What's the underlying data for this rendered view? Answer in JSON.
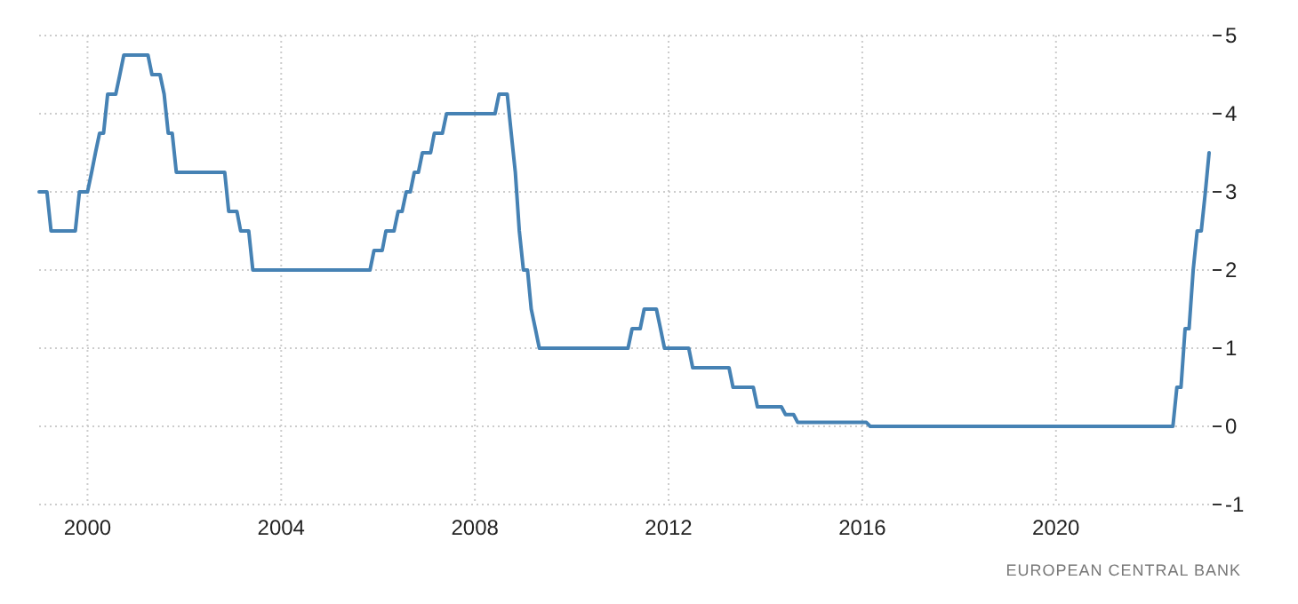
{
  "chart_data": {
    "type": "line",
    "annotations": [
      "EUROPEAN CENTRAL BANK"
    ],
    "x": [
      "1999-01",
      "1999-03",
      "1999-04",
      "1999-10",
      "1999-11",
      "2000-01",
      "2000-02",
      "2000-03",
      "2000-04",
      "2000-05",
      "2000-06",
      "2000-08",
      "2000-09",
      "2000-10",
      "2001-04",
      "2001-05",
      "2001-07",
      "2001-08",
      "2001-09",
      "2001-10",
      "2001-11",
      "2002-11",
      "2002-12",
      "2003-02",
      "2003-03",
      "2003-05",
      "2003-06",
      "2005-11",
      "2005-12",
      "2006-02",
      "2006-03",
      "2006-05",
      "2006-06",
      "2006-07",
      "2006-08",
      "2006-09",
      "2006-10",
      "2006-11",
      "2006-12",
      "2007-02",
      "2007-03",
      "2007-05",
      "2007-06",
      "2008-06",
      "2008-07",
      "2008-09",
      "2008-10",
      "2008-11",
      "2008-12",
      "2009-01",
      "2009-02",
      "2009-03",
      "2009-04",
      "2009-05",
      "2011-03",
      "2011-04",
      "2011-06",
      "2011-07",
      "2011-10",
      "2011-11",
      "2011-12",
      "2012-06",
      "2012-07",
      "2013-04",
      "2013-05",
      "2013-10",
      "2013-11",
      "2014-05",
      "2014-06",
      "2014-08",
      "2014-09",
      "2016-02",
      "2016-03",
      "2022-06",
      "2022-07",
      "2022-08",
      "2022-09",
      "2022-10",
      "2022-11",
      "2022-12",
      "2023-01",
      "2023-02",
      "2023-03"
    ],
    "series": [
      {
        "color": "#4682b4",
        "values": [
          3,
          3,
          2.5,
          2.5,
          3,
          3,
          3.25,
          3.5,
          3.75,
          3.75,
          4.25,
          4.25,
          4.5,
          4.75,
          4.75,
          4.5,
          4.5,
          4.25,
          3.75,
          3.75,
          3.25,
          3.25,
          2.75,
          2.75,
          2.5,
          2.5,
          2,
          2,
          2.25,
          2.25,
          2.5,
          2.5,
          2.75,
          2.75,
          3,
          3,
          3.25,
          3.25,
          3.5,
          3.5,
          3.75,
          3.75,
          4,
          4,
          4.25,
          4.25,
          3.75,
          3.25,
          2.5,
          2,
          2,
          1.5,
          1.25,
          1,
          1,
          1.25,
          1.25,
          1.5,
          1.5,
          1.25,
          1,
          1,
          0.75,
          0.75,
          0.5,
          0.5,
          0.25,
          0.25,
          0.15,
          0.15,
          0.05,
          0.05,
          0,
          0,
          0.5,
          0.5,
          1.25,
          1.25,
          2,
          2.5,
          2.5,
          3,
          3.5
        ]
      }
    ],
    "xlim": [
      "1999-01",
      "2023-03"
    ],
    "xticks": [
      {
        "value": "2000",
        "label": "2000"
      },
      {
        "value": "2004",
        "label": "2004"
      },
      {
        "value": "2008",
        "label": "2008"
      },
      {
        "value": "2012",
        "label": "2012"
      },
      {
        "value": "2016",
        "label": "2016"
      },
      {
        "value": "2020",
        "label": "2020"
      }
    ],
    "ylim": [
      -1,
      5
    ],
    "yticks": [
      -1,
      0,
      1,
      2,
      3,
      4,
      5
    ],
    "grid": true,
    "marker": "none",
    "line_style": "solid"
  }
}
